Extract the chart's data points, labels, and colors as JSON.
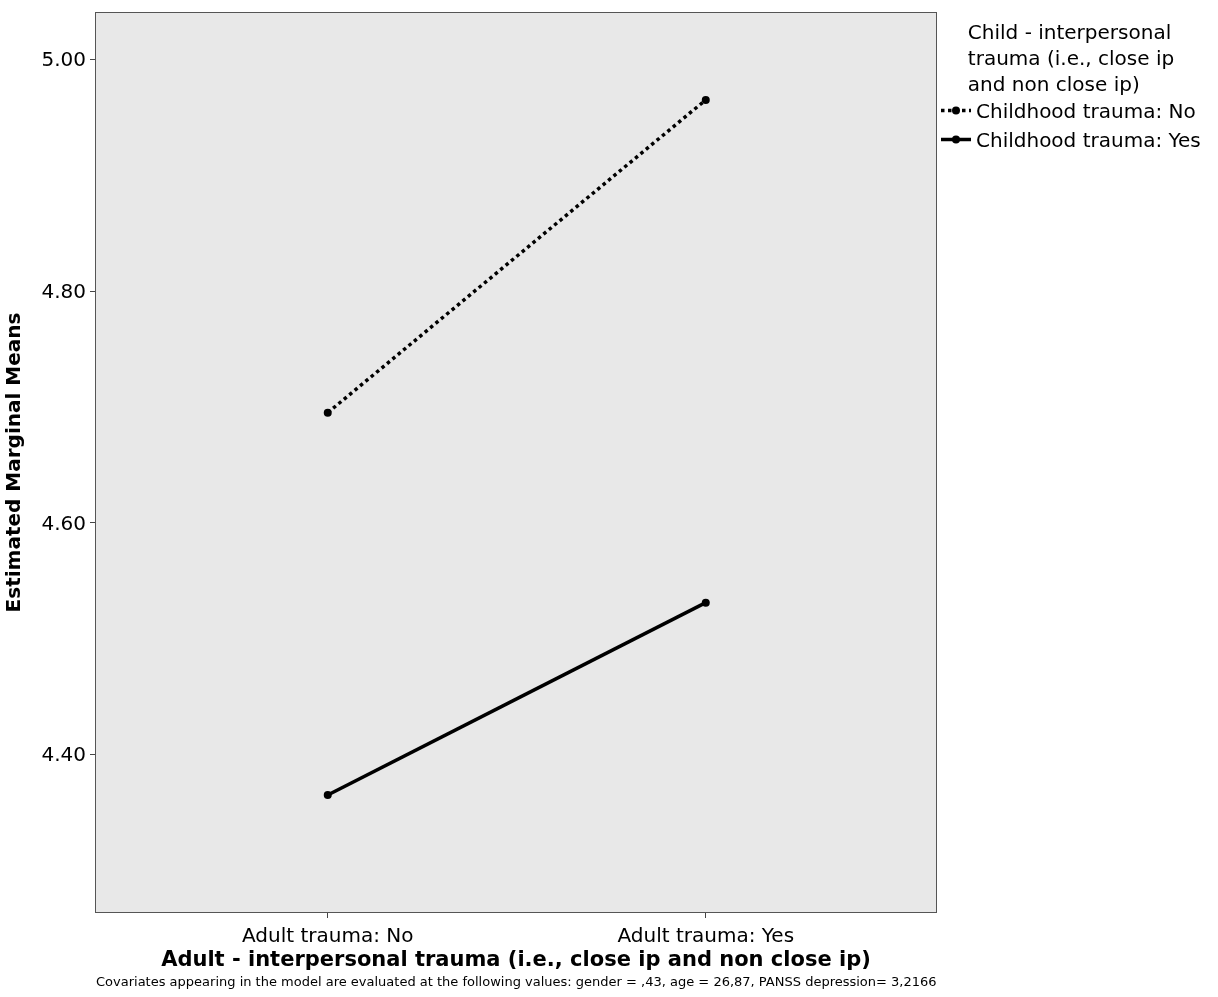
{
  "chart_data": {
    "type": "line",
    "xlabel": "Adult - interpersonal trauma (i.e., close ip and non close ip)",
    "ylabel": "Estimated Marginal Means",
    "legend_title": "Child - interpersonal trauma (i.e., close ip and non close ip)",
    "categories": [
      "Adult trauma: No",
      "Adult trauma: Yes"
    ],
    "series": [
      {
        "name": "Childhood trauma: No",
        "color": "#000000",
        "values": [
          4.695,
          4.965
        ],
        "line_style": "dotted"
      },
      {
        "name": "Childhood trauma: Yes",
        "color": "#000000",
        "values": [
          4.365,
          4.531
        ],
        "line_style": "solid"
      }
    ],
    "ylim": [
      4.264,
      5.04
    ],
    "yticks": [
      {
        "value": 4.4,
        "label": "4.40"
      },
      {
        "value": 4.6,
        "label": "4.60"
      },
      {
        "value": 4.8,
        "label": "4.80"
      },
      {
        "value": 5.0,
        "label": "5.00"
      }
    ],
    "grid": false,
    "legend": "top right",
    "marker": "circle",
    "annotations": [
      "Covariates appearing in the model are evaluated at the following values: gender = ,43, age = 26,87, PANSS depression= 3,2166"
    ]
  }
}
